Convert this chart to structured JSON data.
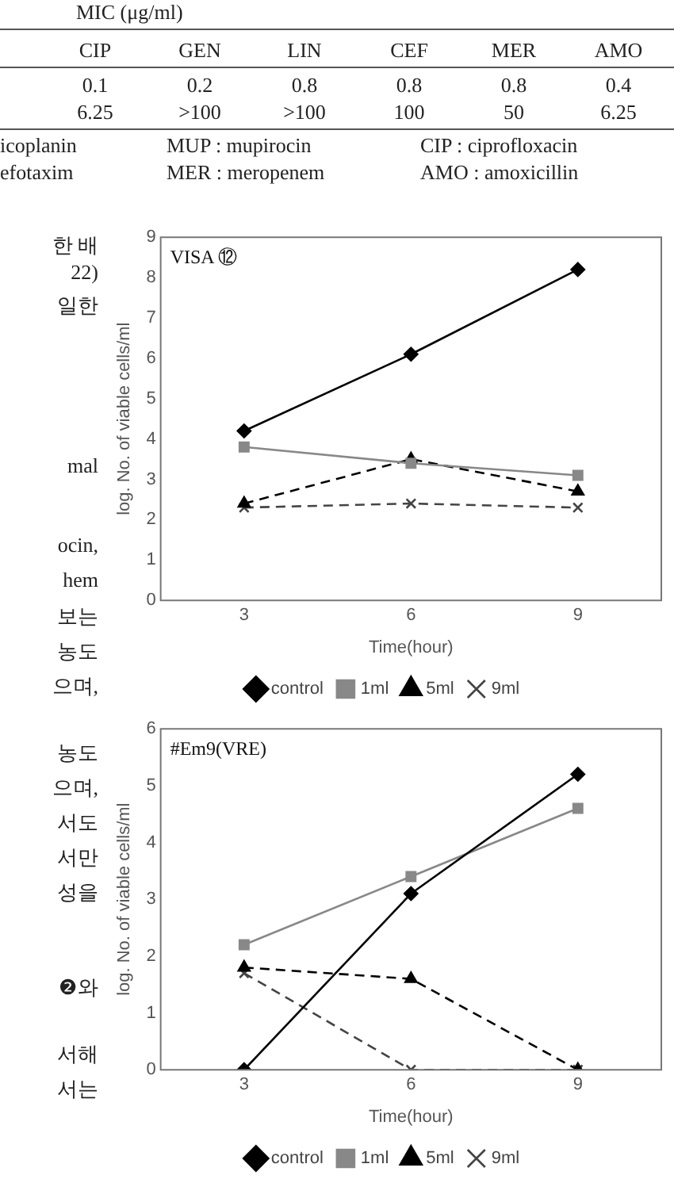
{
  "chart_data": [
    {
      "type": "other",
      "title": "MIC (μg/ml)",
      "categories": [
        "CIP",
        "GEN",
        "LIN",
        "CEF",
        "MER",
        "AMO"
      ],
      "cell_labels": [
        [
          "0.1",
          "0.2",
          "0.8",
          "0.8",
          "0.8",
          "0.4"
        ],
        [
          "6.25",
          ">100",
          ">100",
          "100",
          "50",
          "6.25"
        ]
      ],
      "annotations": [
        "icoplanin",
        "efotaxim",
        "MUP : mupirocin",
        "MER : meropenem",
        "CIP : ciprofloxacin",
        "AMO : amoxicillin"
      ]
    },
    {
      "type": "other",
      "annotations": [
        "한 배",
        "22)",
        "일한",
        "mal",
        "ocin,",
        "hem",
        "보는",
        "농도",
        "으며,",
        "농도",
        "으며,",
        "서도",
        "서만",
        "성을",
        "❷와",
        "서해",
        "서는"
      ]
    },
    {
      "type": "line",
      "title": "VISA ⑫",
      "xlabel": "Time(hour)",
      "ylabel": "log. No. of viable cells/ml",
      "x": [
        3,
        6,
        9
      ],
      "xlim": [
        1.5,
        10.5
      ],
      "xticks": [
        3,
        6,
        9
      ],
      "ylim": [
        0,
        9
      ],
      "yticks": [
        0,
        1,
        2,
        3,
        4,
        5,
        6,
        7,
        8,
        9
      ],
      "grid": false,
      "legend": "bottom",
      "series": [
        {
          "name": "control",
          "color": "#000000",
          "values": [
            4.2,
            6.1,
            8.2
          ],
          "marker": "diamond",
          "line_style": "solid"
        },
        {
          "name": "1ml",
          "color": "#888888",
          "values": [
            3.8,
            3.4,
            3.1
          ],
          "marker": "square",
          "line_style": "solid"
        },
        {
          "name": "5ml",
          "color": "#000000",
          "values": [
            2.4,
            3.5,
            2.7
          ],
          "marker": "triangle",
          "line_style": "dashed"
        },
        {
          "name": "9ml",
          "color": "#444444",
          "values": [
            2.3,
            2.4,
            2.3
          ],
          "marker": "cross",
          "line_style": "dashed"
        }
      ]
    },
    {
      "type": "line",
      "title": "#Em9(VRE)",
      "xlabel": "Time(hour)",
      "ylabel": "log. No. of viable cells/ml",
      "x": [
        3,
        6,
        9
      ],
      "xlim": [
        1.5,
        10.5
      ],
      "xticks": [
        3,
        6,
        9
      ],
      "ylim": [
        0,
        6
      ],
      "yticks": [
        0,
        1,
        2,
        3,
        4,
        5,
        6
      ],
      "grid": false,
      "legend": "bottom",
      "series": [
        {
          "name": "control",
          "color": "#000000",
          "values": [
            0,
            3.1,
            5.2
          ],
          "marker": "diamond",
          "line_style": "solid"
        },
        {
          "name": "1ml",
          "color": "#888888",
          "values": [
            2.2,
            3.4,
            4.6
          ],
          "marker": "square",
          "line_style": "solid"
        },
        {
          "name": "5ml",
          "color": "#000000",
          "values": [
            1.8,
            1.6,
            0
          ],
          "marker": "triangle",
          "line_style": "dashed"
        },
        {
          "name": "9ml",
          "color": "#444444",
          "values": [
            1.7,
            0,
            0
          ],
          "marker": "cross",
          "line_style": "dashed"
        }
      ]
    }
  ]
}
